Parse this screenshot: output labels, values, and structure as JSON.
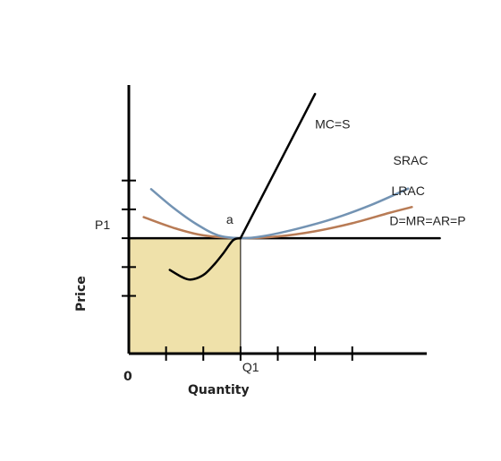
{
  "chart_data": {
    "type": "line",
    "title": "",
    "xlabel": "Quantity",
    "ylabel": "Price",
    "origin_label": "0",
    "x_tick_labels": [
      {
        "x": 3,
        "label": "Q1"
      }
    ],
    "y_tick_labels": [
      {
        "y": 4,
        "label": "P1"
      }
    ],
    "x_ticks": [
      1,
      2,
      3,
      4,
      5,
      6
    ],
    "y_ticks": [
      2,
      3,
      4,
      5,
      6
    ],
    "xlim": [
      0,
      8
    ],
    "ylim": [
      0,
      9
    ],
    "point_label": {
      "text": "a",
      "x": 3,
      "y": 4
    },
    "shaded_region": {
      "x": [
        0,
        3
      ],
      "y": [
        0,
        4
      ],
      "color": "#efe1aa"
    },
    "colors": {
      "axes": "#000000",
      "mc": "#000000",
      "avc": "#000000",
      "srac": "#7393b3",
      "lrac": "#b87b55",
      "demand": "#000000"
    },
    "series": [
      {
        "name": "MC=S",
        "color": "#000000",
        "x": [
          3,
          5
        ],
        "y": [
          4,
          9
        ]
      },
      {
        "name": "",
        "color": "#000000",
        "x": [
          1.1,
          1.4,
          1.6,
          1.8,
          2.05,
          2.3,
          2.55,
          2.8,
          3
        ],
        "y": [
          2.9,
          2.67,
          2.57,
          2.6,
          2.77,
          3.1,
          3.5,
          3.93,
          4
        ]
      },
      {
        "name": "SRAC",
        "color": "#7393b3",
        "x": [
          0.6,
          1.2,
          1.8,
          2.4,
          3.0,
          3.6,
          4.5,
          5.5,
          6.5,
          7.5
        ],
        "y": [
          5.7,
          5.05,
          4.5,
          4.1,
          4.0,
          4.07,
          4.32,
          4.68,
          5.15,
          5.72
        ]
      },
      {
        "name": "LRAC",
        "color": "#b87b55",
        "x": [
          0.4,
          1.2,
          2.0,
          3.0,
          4.0,
          5.0,
          6.0,
          7.0,
          7.6
        ],
        "y": [
          4.73,
          4.36,
          4.1,
          4.0,
          4.06,
          4.24,
          4.52,
          4.88,
          5.08
        ]
      },
      {
        "name": "D=MR=AR=P",
        "color": "#000000",
        "x": [
          0,
          8.35
        ],
        "y": [
          4,
          4
        ]
      }
    ],
    "series_labels": [
      {
        "series": 0,
        "x": 5.0,
        "y": 7.8
      },
      {
        "series": 2,
        "x": 7.1,
        "y": 6.55
      },
      {
        "series": 3,
        "x": 7.05,
        "y": 5.5
      },
      {
        "series": 4,
        "x": 7.0,
        "y": 4.45
      }
    ]
  }
}
